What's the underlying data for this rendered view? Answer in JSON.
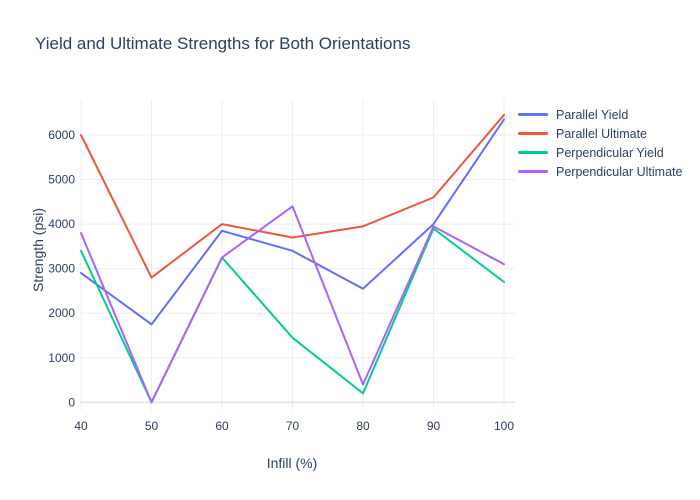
{
  "chart_data": {
    "type": "line",
    "title": "Yield and Ultimate Strengths for Both Orientations",
    "xlabel": "Infill (%)",
    "ylabel": "Strength (psi)",
    "x": [
      40,
      50,
      60,
      70,
      80,
      90,
      100
    ],
    "xticks": [
      40,
      50,
      60,
      70,
      80,
      90,
      100
    ],
    "yticks": [
      0,
      1000,
      2000,
      3000,
      4000,
      5000,
      6000
    ],
    "xlim": [
      40,
      100
    ],
    "ylim": [
      -175,
      6790
    ],
    "grid": true,
    "legend_position": "right",
    "series": [
      {
        "name": "Parallel Yield",
        "color": "#636efa",
        "values": [
          2900,
          1750,
          3850,
          3400,
          2550,
          4000,
          6350
        ]
      },
      {
        "name": "Parallel Ultimate",
        "color": "#ef553b",
        "values": [
          6000,
          2800,
          4000,
          3700,
          3950,
          4600,
          6450
        ]
      },
      {
        "name": "Perpendicular Yield",
        "color": "#00cc96",
        "values": [
          3400,
          0,
          3250,
          1450,
          200,
          3900,
          2700
        ]
      },
      {
        "name": "Perpendicular Ultimate",
        "color": "#ab63fa",
        "values": [
          3800,
          0,
          3250,
          4400,
          400,
          3950,
          3100
        ]
      }
    ],
    "style": {
      "font_color": "#2a3f5f",
      "grid_color": "#e9eef6",
      "zeroline_color": "#e2e9f3",
      "line_width": 2
    }
  }
}
